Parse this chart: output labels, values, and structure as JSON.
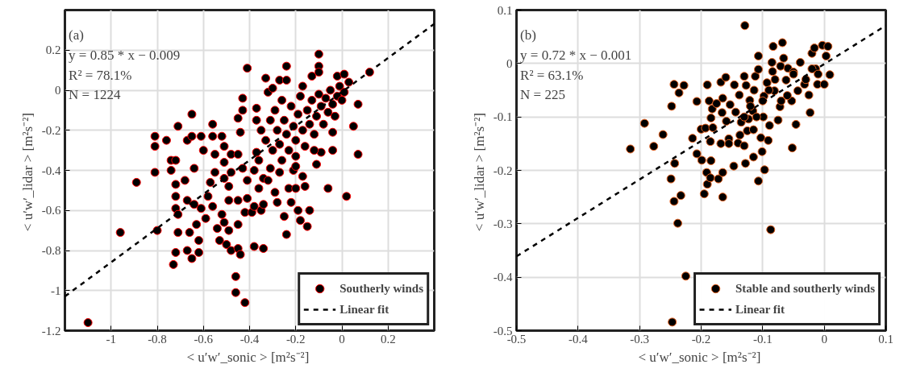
{
  "chart_data": [
    {
      "type": "scatter",
      "xlabel": "< u′w′_sonic >  [m²s⁻²]",
      "ylabel": "< u′w′_lidar >  [m²s⁻²]",
      "annotations": [
        "(a)",
        "y = 0.85 * x − 0.009",
        "R² = 78.1%",
        "N = 1224"
      ],
      "xlim": [
        -1.2,
        0.4
      ],
      "ylim": [
        -1.2,
        0.4
      ],
      "xticks": [
        -1,
        -0.8,
        -0.6,
        -0.4,
        -0.2,
        0,
        0.2
      ],
      "yticks": [
        -1.2,
        -1,
        -0.8,
        -0.6,
        -0.4,
        -0.2,
        0,
        0.2
      ],
      "grid": true,
      "legend": "bottom right",
      "series": [
        {
          "name": "Southerly winds",
          "marker": "circle",
          "color": "#000000",
          "x": [
            -1.1,
            -0.96,
            -0.89,
            -0.81,
            -0.81,
            -0.81,
            -0.8,
            -0.76,
            -0.74,
            -0.74,
            -0.73,
            -0.72,
            -0.72,
            -0.72,
            -0.72,
            -0.71,
            -0.71,
            -0.72,
            -0.71,
            -0.68,
            -0.67,
            -0.67,
            -0.67,
            -0.65,
            -0.65,
            -0.65,
            -0.66,
            -0.64,
            -0.64,
            -0.63,
            -0.62,
            -0.62,
            -0.61,
            -0.6,
            -0.61,
            -0.59,
            -0.58,
            -0.57,
            -0.56,
            -0.56,
            -0.56,
            -0.55,
            -0.55,
            -0.54,
            -0.53,
            -0.52,
            -0.52,
            -0.51,
            -0.51,
            -0.51,
            -0.51,
            -0.5,
            -0.49,
            -0.49,
            -0.48,
            -0.49,
            -0.48,
            -0.48,
            -0.46,
            -0.46,
            -0.45,
            -0.45,
            -0.45,
            -0.45,
            -0.45,
            -0.44,
            -0.43,
            -0.43,
            -0.44,
            -0.43,
            -0.42,
            -0.42,
            -0.41,
            -0.41,
            -0.41,
            -0.39,
            -0.38,
            -0.38,
            -0.37,
            -0.38,
            -0.37,
            -0.37,
            -0.36,
            -0.35,
            -0.34,
            -0.34,
            -0.33,
            -0.34,
            -0.32,
            -0.31,
            -0.3,
            -0.29,
            -0.28,
            -0.27,
            -0.27,
            -0.25,
            -0.24,
            -0.24,
            -0.24,
            -0.23,
            -0.22,
            -0.21,
            -0.2,
            -0.2,
            -0.19,
            -0.18,
            -0.17,
            -0.17,
            -0.16,
            -0.15,
            -0.14,
            -0.13,
            -0.11,
            -0.1,
            -0.1,
            -0.1,
            -0.09,
            -0.06,
            -0.04,
            -0.04,
            -0.02,
            0.01,
            0.02,
            0.03,
            0.05,
            0.07,
            0.07,
            0.12,
            -0.35,
            -0.33,
            -0.31,
            -0.3,
            -0.29,
            -0.28,
            -0.27,
            -0.26,
            -0.25,
            -0.24,
            -0.23,
            -0.22,
            -0.21,
            -0.2,
            -0.19,
            -0.18,
            -0.17,
            -0.16,
            -0.15,
            -0.14,
            -0.13,
            -0.12,
            -0.11,
            -0.1,
            -0.09,
            -0.08,
            -0.07,
            -0.06,
            -0.05,
            -0.04,
            -0.03,
            -0.02,
            -0.01,
            0.0,
            0.01,
            -0.36,
            -0.32,
            -0.26,
            -0.2,
            -0.12
          ],
          "values": [
            -1.16,
            -0.71,
            -0.46,
            -0.23,
            -0.28,
            -0.41,
            -0.7,
            -0.25,
            -0.35,
            -0.4,
            -0.87,
            -0.35,
            -0.47,
            -0.53,
            -0.59,
            -0.62,
            -0.71,
            -0.81,
            -0.18,
            -0.45,
            -0.25,
            -0.55,
            -0.8,
            -0.12,
            -0.23,
            -0.84,
            -0.71,
            -0.39,
            -0.57,
            -0.67,
            -0.75,
            -0.81,
            -0.23,
            -0.3,
            -0.59,
            -0.64,
            -0.53,
            -0.46,
            -0.17,
            -0.23,
            -0.58,
            -0.32,
            -0.41,
            -0.69,
            -0.75,
            -0.62,
            -0.23,
            -0.28,
            -0.36,
            -0.44,
            -0.66,
            -0.77,
            -0.48,
            -0.7,
            -0.8,
            -0.55,
            -0.32,
            -0.41,
            -0.93,
            -1.01,
            -0.14,
            -0.32,
            -0.55,
            -0.67,
            -0.79,
            -0.82,
            -0.04,
            -0.1,
            -0.21,
            -0.39,
            -1.06,
            -0.61,
            -0.45,
            0.11,
            -0.54,
            -0.61,
            -0.58,
            -0.78,
            -0.09,
            -0.4,
            -0.15,
            -0.31,
            -0.49,
            -0.6,
            -0.79,
            -0.57,
            0.06,
            -0.44,
            -0.01,
            -0.39,
            0.01,
            -0.51,
            -0.56,
            0.05,
            -0.41,
            -0.63,
            0.12,
            -0.72,
            0.05,
            -0.49,
            -0.56,
            -0.4,
            -0.33,
            -0.49,
            -0.6,
            -0.65,
            -0.43,
            0.02,
            -0.48,
            -0.68,
            -0.6,
            0.07,
            -0.37,
            0.18,
            0.12,
            0.09,
            -0.31,
            -0.49,
            -0.21,
            -0.3,
            0.07,
            0.08,
            -0.53,
            0.04,
            -0.18,
            -0.07,
            -0.32,
            0.09,
            -0.2,
            -0.25,
            -0.15,
            -0.3,
            -0.1,
            -0.2,
            -0.27,
            -0.05,
            -0.15,
            -0.22,
            -0.3,
            -0.08,
            -0.18,
            -0.25,
            -0.12,
            -0.03,
            -0.2,
            -0.28,
            -0.1,
            -0.17,
            -0.05,
            -0.22,
            -0.13,
            -0.02,
            -0.08,
            -0.17,
            -0.04,
            -0.11,
            0.0,
            -0.07,
            -0.13,
            -0.03,
            0.02,
            -0.05,
            -0.01,
            -0.35,
            -0.45,
            -0.35,
            -0.38,
            -0.3
          ]
        },
        {
          "name": "Linear fit",
          "type": "line",
          "line_style": "dashed",
          "color": "#000000",
          "x": [
            -1.2,
            0.4
          ],
          "values": [
            -1.029,
            0.331
          ]
        }
      ]
    },
    {
      "type": "scatter",
      "xlabel": "< u′w′_sonic >  [m²s⁻²]",
      "ylabel": "< u′w′_lidar >  [m²s⁻²]",
      "annotations": [
        "(b)",
        "y = 0.72 * x − 0.001",
        "R² = 63.1%",
        "N = 225"
      ],
      "xlim": [
        -0.5,
        0.1
      ],
      "ylim": [
        -0.5,
        0.1
      ],
      "xticks": [
        -0.5,
        -0.4,
        -0.3,
        -0.2,
        -0.1,
        0,
        0.1
      ],
      "yticks": [
        -0.5,
        -0.4,
        -0.3,
        -0.2,
        -0.1,
        0,
        0.1
      ],
      "grid": true,
      "legend": "bottom right",
      "series": [
        {
          "name": "Stable and southerly winds",
          "marker": "circle",
          "color": "#000000",
          "x": [
            -0.315,
            -0.292,
            -0.277,
            -0.262,
            -0.248,
            -0.249,
            -0.244,
            -0.244,
            -0.243,
            -0.247,
            -0.238,
            -0.236,
            -0.233,
            -0.228,
            -0.225,
            -0.214,
            -0.207,
            -0.207,
            -0.2,
            -0.199,
            -0.195,
            -0.193,
            -0.191,
            -0.19,
            -0.19,
            -0.187,
            -0.185,
            -0.185,
            -0.184,
            -0.184,
            -0.182,
            -0.181,
            -0.175,
            -0.172,
            -0.168,
            -0.168,
            -0.166,
            -0.165,
            -0.165,
            -0.165,
            -0.16,
            -0.159,
            -0.155,
            -0.155,
            -0.153,
            -0.147,
            -0.146,
            -0.144,
            -0.14,
            -0.138,
            -0.137,
            -0.135,
            -0.13,
            -0.129,
            -0.13,
            -0.128,
            -0.127,
            -0.125,
            -0.123,
            -0.121,
            -0.116,
            -0.115,
            -0.115,
            -0.114,
            -0.112,
            -0.107,
            -0.107,
            -0.107,
            -0.103,
            -0.101,
            -0.099,
            -0.098,
            -0.097,
            -0.093,
            -0.091,
            -0.089,
            -0.087,
            -0.085,
            -0.084,
            -0.083,
            -0.081,
            -0.075,
            -0.072,
            -0.071,
            -0.068,
            -0.066,
            -0.062,
            -0.059,
            -0.053,
            -0.052,
            -0.05,
            -0.046,
            -0.043,
            -0.039,
            -0.032,
            -0.025,
            -0.023,
            -0.02,
            -0.016,
            -0.014,
            -0.011,
            -0.003,
            0.0,
            0.003,
            0.006,
            0.009,
            -0.09,
            -0.1,
            -0.08,
            -0.06,
            -0.05,
            -0.03,
            -0.02,
            -0.01,
            -0.12,
            -0.11,
            -0.13,
            -0.07
          ],
          "values": [
            -0.16,
            -0.112,
            -0.155,
            -0.133,
            -0.08,
            -0.216,
            -0.039,
            -0.258,
            -0.187,
            -0.484,
            -0.299,
            -0.055,
            -0.247,
            -0.041,
            -0.398,
            -0.14,
            -0.071,
            -0.169,
            -0.123,
            -0.181,
            -0.244,
            -0.121,
            -0.204,
            -0.04,
            -0.226,
            -0.07,
            -0.214,
            -0.146,
            -0.182,
            -0.102,
            -0.085,
            -0.12,
            -0.075,
            -0.216,
            -0.035,
            -0.15,
            -0.092,
            -0.25,
            -0.204,
            -0.065,
            -0.026,
            -0.108,
            -0.141,
            -0.15,
            -0.077,
            -0.192,
            -0.04,
            -0.091,
            -0.149,
            -0.059,
            -0.134,
            -0.11,
            -0.154,
            0.071,
            -0.024,
            -0.187,
            -0.041,
            -0.126,
            -0.104,
            -0.069,
            -0.089,
            -0.175,
            -0.124,
            -0.05,
            -0.024,
            -0.011,
            0.014,
            -0.22,
            -0.139,
            -0.165,
            -0.1,
            -0.061,
            -0.199,
            -0.036,
            -0.144,
            -0.116,
            -0.311,
            0.002,
            -0.015,
            0.032,
            -0.051,
            -0.106,
            -0.081,
            -0.005,
            0.039,
            0.01,
            -0.031,
            -0.009,
            -0.07,
            -0.158,
            -0.016,
            -0.114,
            -0.051,
            0.002,
            -0.039,
            -0.059,
            -0.092,
            0.019,
            0.029,
            -0.01,
            -0.039,
            0.034,
            -0.039,
            0.014,
            0.032,
            -0.021,
            -0.05,
            -0.07,
            -0.03,
            -0.06,
            -0.02,
            -0.03,
            -0.01,
            -0.02,
            -0.08,
            -0.1,
            -0.1,
            -0.07
          ]
        },
        {
          "name": "Linear fit",
          "type": "line",
          "line_style": "dashed",
          "color": "#000000",
          "x": [
            -0.5,
            0.1
          ],
          "values": [
            -0.361,
            0.071
          ]
        }
      ]
    }
  ]
}
